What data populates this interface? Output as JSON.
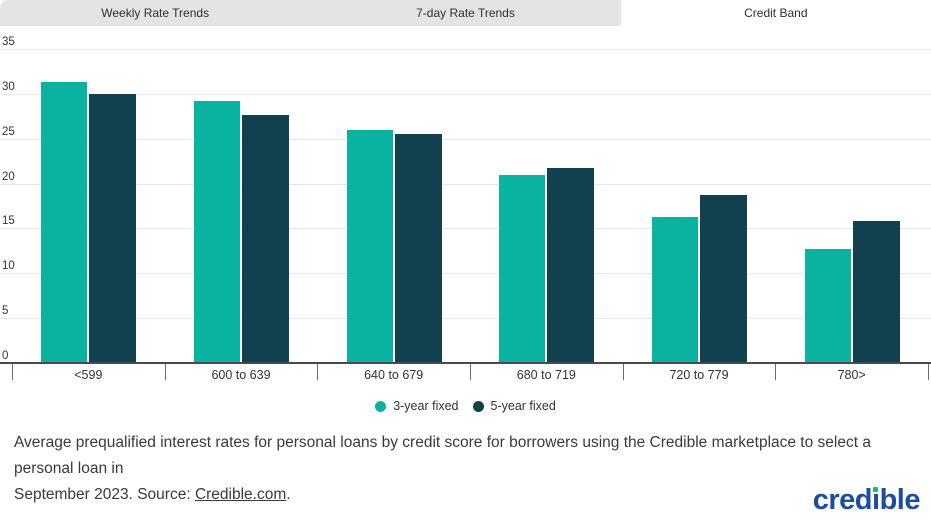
{
  "tabs": [
    {
      "label": "Weekly Rate Trends",
      "active": false
    },
    {
      "label": "7-day Rate Trends",
      "active": false
    },
    {
      "label": "Credit Band",
      "active": true
    }
  ],
  "chart_data": {
    "type": "bar",
    "title": "",
    "xlabel": "",
    "ylabel": "",
    "categories": [
      "<599",
      "600 to 639",
      "640 to 679",
      "680 to 719",
      "720 to 779",
      "780>"
    ],
    "series": [
      {
        "name": "3-year fixed",
        "color": "#0ab3a0",
        "values": [
          31.3,
          29.2,
          26.0,
          21.0,
          16.3,
          12.7
        ]
      },
      {
        "name": "5-year fixed",
        "color": "#11404e",
        "values": [
          30.0,
          27.6,
          25.5,
          21.7,
          18.7,
          15.8
        ]
      }
    ],
    "ylim": [
      0,
      35
    ],
    "yticks": [
      0,
      5,
      10,
      15,
      20,
      25,
      30,
      35
    ],
    "grid": true,
    "legend_position": "bottom"
  },
  "caption": {
    "line1": "Average prequalified interest rates for personal loans by credit score for borrowers using the Credible marketplace to select a personal loan in",
    "line2_prefix": "September 2023. Source: ",
    "link": "Credible.com",
    "suffix": "."
  },
  "logo": {
    "text_pre": "cred",
    "text_i": "ı",
    "text_post": "ble",
    "blue": "#1c4da1",
    "green": "#2eb85c"
  },
  "colors": {
    "series_3yr": "#0ab3a0",
    "series_5yr": "#11404e",
    "tab_background": "#e4e4e4",
    "active_tab_background": "#ffffff",
    "gridline": "#e7e7e7",
    "axis": "#4a4a4a",
    "text": "#333333"
  }
}
